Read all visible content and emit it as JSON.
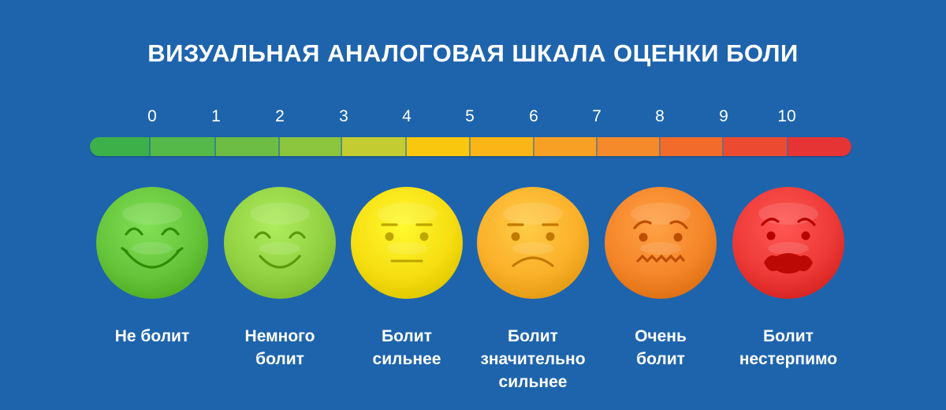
{
  "title": "ВИЗУАЛЬНАЯ АНАЛОГОВАЯ ШКАЛА ОЦЕНКИ БОЛИ",
  "scale": {
    "min": 0,
    "max": 10,
    "ticks": [
      "0",
      "1",
      "2",
      "3",
      "4",
      "5",
      "6",
      "7",
      "8",
      "9",
      "10"
    ],
    "segment_colors": [
      "#3db04a",
      "#55b949",
      "#6dbd44",
      "#8cc63f",
      "#c3cd32",
      "#f9c80e",
      "#fbb516",
      "#f8a024",
      "#f58a2a",
      "#f26b2a",
      "#ec4b32",
      "#e63434"
    ]
  },
  "faces": [
    {
      "label": "Не болит",
      "expression": "big-smile-face-icon",
      "color": "#66c43a"
    },
    {
      "label": "Немного\nболит",
      "expression": "smile-face-icon",
      "color": "#92d142"
    },
    {
      "label": "Болит\nсильнее",
      "expression": "neutral-face-icon",
      "color": "#f6de12"
    },
    {
      "label": "Болит\nзначительно\nсильнее",
      "expression": "frown-face-icon",
      "color": "#fbb02a"
    },
    {
      "label": "Очень\nболит",
      "expression": "worried-face-icon",
      "color": "#f58529"
    },
    {
      "label": "Болит\nнестерпимо",
      "expression": "agony-face-icon",
      "color": "#ee3a37"
    }
  ]
}
